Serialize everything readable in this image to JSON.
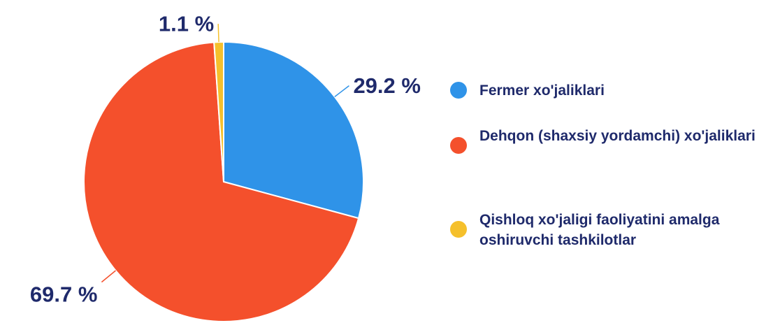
{
  "chart_data": {
    "type": "pie",
    "categories": [
      "Fermer  xo'jaliklari",
      "Dehqon (shaxsiy yordamchi) xo'jaliklari",
      "Qishloq xo'jaligi faoliyatini amalga oshiruvchi tashkilotlar"
    ],
    "values": [
      29.2,
      69.7,
      1.1
    ],
    "value_labels": [
      "29.2 %",
      "69.7 %",
      "1.1 %"
    ],
    "colors": [
      "#2f93e8",
      "#f4502c",
      "#f5c02c"
    ]
  }
}
